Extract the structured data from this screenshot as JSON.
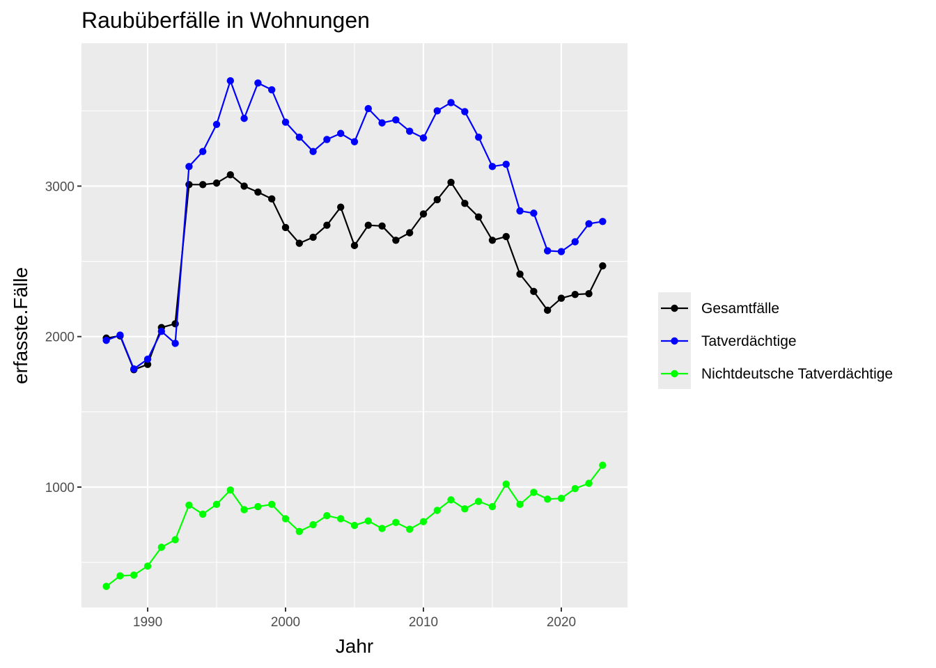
{
  "chart_data": {
    "type": "line",
    "title": "Raubüberfälle in Wohnungen",
    "xlabel": "Jahr",
    "ylabel": "erfasste.Fälle",
    "xlim": [
      1985.2,
      2024.8
    ],
    "ylim": [
      200,
      3950
    ],
    "x_ticks": [
      1990,
      2000,
      2010,
      2020
    ],
    "y_ticks": [
      1000,
      2000,
      3000
    ],
    "grid": true,
    "legend_position": "right",
    "x": [
      1987,
      1988,
      1989,
      1990,
      1991,
      1992,
      1993,
      1994,
      1995,
      1996,
      1997,
      1998,
      1999,
      2000,
      2001,
      2002,
      2003,
      2004,
      2005,
      2006,
      2007,
      2008,
      2009,
      2010,
      2011,
      2012,
      2013,
      2014,
      2015,
      2016,
      2017,
      2018,
      2019,
      2020,
      2021,
      2022,
      2023
    ],
    "series": [
      {
        "name": "Gesamtfälle",
        "color": "#000000",
        "values": [
          1990,
          2005,
          1780,
          1815,
          2060,
          2085,
          3010,
          3010,
          3020,
          3075,
          3000,
          2960,
          2915,
          2725,
          2620,
          2660,
          2740,
          2860,
          2605,
          2740,
          2735,
          2640,
          2690,
          2815,
          2910,
          3025,
          2885,
          2795,
          2640,
          2665,
          2415,
          2300,
          2175,
          2255,
          2280,
          2285,
          2470
        ]
      },
      {
        "name": "Tatverdächtige",
        "color": "#0000ff",
        "values": [
          1975,
          2010,
          1785,
          1850,
          2035,
          1955,
          3130,
          3230,
          3410,
          3700,
          3450,
          3685,
          3640,
          3425,
          3325,
          3230,
          3310,
          3350,
          3295,
          3515,
          3420,
          3440,
          3365,
          3320,
          3500,
          3555,
          3495,
          3325,
          3130,
          3145,
          2835,
          2820,
          2570,
          2565,
          2630,
          2750,
          2765
        ]
      },
      {
        "name": "Nichtdeutsche Tatverdächtige",
        "color": "#00ff00",
        "values": [
          340,
          410,
          415,
          475,
          600,
          650,
          880,
          820,
          885,
          980,
          850,
          870,
          885,
          790,
          705,
          750,
          810,
          790,
          745,
          775,
          725,
          765,
          720,
          770,
          845,
          915,
          855,
          905,
          870,
          1020,
          885,
          965,
          920,
          925,
          990,
          1025,
          1145
        ]
      }
    ]
  }
}
